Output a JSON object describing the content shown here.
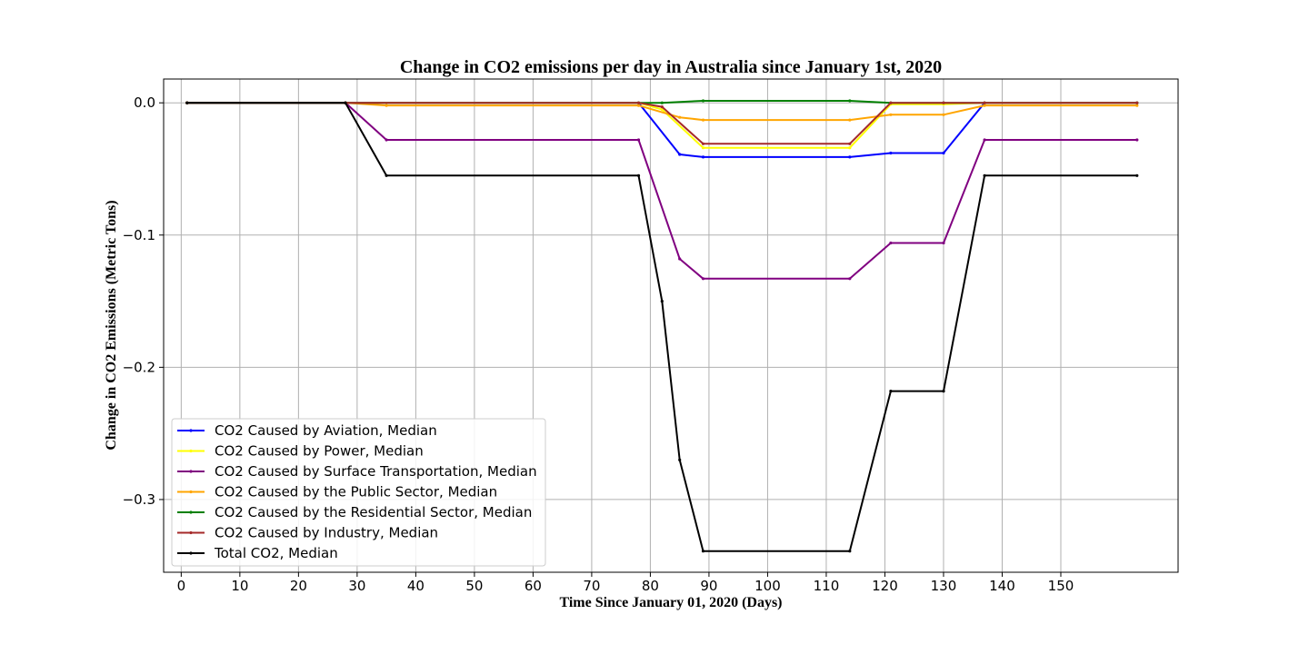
{
  "chart_data": {
    "type": "line",
    "title": "Change in CO2 emissions per day in Australia since January 1st, 2020",
    "xlabel": "Time Since January 01, 2020 (Days)",
    "ylabel": "Change in CO2 Emissions (Metric Tons)",
    "xlim": [
      -3,
      170
    ],
    "ylim": [
      -0.355,
      0.018
    ],
    "xticks": [
      0,
      10,
      20,
      30,
      40,
      50,
      60,
      70,
      80,
      90,
      100,
      110,
      120,
      130,
      140,
      150
    ],
    "yticks": [
      0.0,
      -0.1,
      -0.2,
      -0.3
    ],
    "ytick_labels": [
      "0.0",
      "−0.1",
      "−0.2",
      "−0.3"
    ],
    "grid": true,
    "legend_position": "lower-left",
    "series": [
      {
        "name": "CO2 Caused by Aviation, Median",
        "color": "#0000ff",
        "points": [
          [
            1,
            0
          ],
          [
            28,
            0
          ],
          [
            78,
            0
          ],
          [
            85,
            -0.039
          ],
          [
            89,
            -0.041
          ],
          [
            114,
            -0.041
          ],
          [
            121,
            -0.038
          ],
          [
            130,
            -0.038
          ],
          [
            137,
            0
          ],
          [
            163,
            0
          ]
        ]
      },
      {
        "name": "CO2 Caused by Power, Median",
        "color": "#ffff00",
        "points": [
          [
            1,
            0
          ],
          [
            28,
            0
          ],
          [
            78,
            0
          ],
          [
            82,
            -0.005
          ],
          [
            89,
            -0.034
          ],
          [
            114,
            -0.034
          ],
          [
            121,
            -0.001
          ],
          [
            130,
            -0.001
          ],
          [
            137,
            0
          ],
          [
            163,
            0
          ]
        ]
      },
      {
        "name": "CO2 Caused by Surface Transportation, Median",
        "color": "#800080",
        "points": [
          [
            1,
            0
          ],
          [
            28,
            0
          ],
          [
            35,
            -0.028
          ],
          [
            78,
            -0.028
          ],
          [
            85,
            -0.118
          ],
          [
            89,
            -0.133
          ],
          [
            114,
            -0.133
          ],
          [
            121,
            -0.106
          ],
          [
            130,
            -0.106
          ],
          [
            137,
            -0.028
          ],
          [
            163,
            -0.028
          ]
        ]
      },
      {
        "name": "CO2 Caused by the Public Sector, Median",
        "color": "#ffa500",
        "points": [
          [
            1,
            0
          ],
          [
            28,
            0
          ],
          [
            35,
            -0.002
          ],
          [
            78,
            -0.002
          ],
          [
            85,
            -0.011
          ],
          [
            89,
            -0.013
          ],
          [
            114,
            -0.013
          ],
          [
            121,
            -0.009
          ],
          [
            130,
            -0.009
          ],
          [
            137,
            -0.002
          ],
          [
            163,
            -0.002
          ]
        ]
      },
      {
        "name": "CO2 Caused by the Residential Sector, Median",
        "color": "#008000",
        "points": [
          [
            1,
            0
          ],
          [
            28,
            0
          ],
          [
            78,
            0
          ],
          [
            82,
            0
          ],
          [
            89,
            0.0015
          ],
          [
            114,
            0.0015
          ],
          [
            121,
            0
          ],
          [
            130,
            0
          ],
          [
            137,
            0
          ],
          [
            163,
            0
          ]
        ]
      },
      {
        "name": "CO2 Caused by Industry, Median",
        "color": "#a52a2a",
        "points": [
          [
            1,
            0
          ],
          [
            28,
            0
          ],
          [
            78,
            0
          ],
          [
            82,
            -0.003
          ],
          [
            89,
            -0.031
          ],
          [
            114,
            -0.031
          ],
          [
            121,
            0
          ],
          [
            130,
            0
          ],
          [
            137,
            0
          ],
          [
            163,
            0
          ]
        ]
      },
      {
        "name": "Total CO2, Median",
        "color": "#000000",
        "points": [
          [
            1,
            0
          ],
          [
            28,
            0
          ],
          [
            35,
            -0.055
          ],
          [
            78,
            -0.055
          ],
          [
            82,
            -0.15
          ],
          [
            85,
            -0.27
          ],
          [
            89,
            -0.339
          ],
          [
            114,
            -0.339
          ],
          [
            121,
            -0.218
          ],
          [
            130,
            -0.218
          ],
          [
            137,
            -0.055
          ],
          [
            163,
            -0.055
          ]
        ]
      }
    ]
  }
}
